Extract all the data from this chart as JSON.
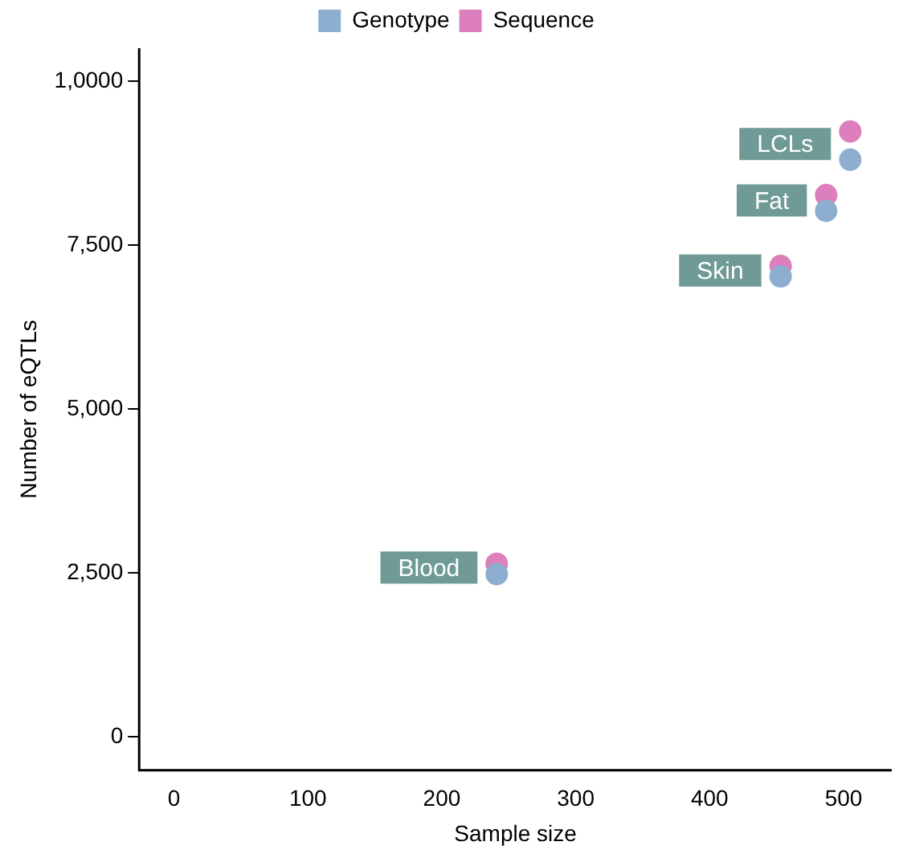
{
  "chart_data": {
    "type": "scatter",
    "xlabel": "Sample size",
    "ylabel": "Number of eQTLs",
    "xlim": [
      -26,
      536
    ],
    "ylim": [
      -510,
      10500
    ],
    "xticks": [
      0,
      100,
      200,
      300,
      400,
      500
    ],
    "yticks": [
      {
        "value": 0,
        "label": "0"
      },
      {
        "value": 2500,
        "label": "2,500"
      },
      {
        "value": 5000,
        "label": "5,000"
      },
      {
        "value": 7500,
        "label": "7,500"
      },
      {
        "value": 10000,
        "label": "1,0000"
      }
    ],
    "series": [
      {
        "name": "Genotype",
        "color": "#8eaed0",
        "x": [
          241,
          453,
          487,
          505
        ],
        "values": [
          2480,
          7020,
          8020,
          8800
        ]
      },
      {
        "name": "Sequence",
        "color": "#dc7fbc",
        "x": [
          241,
          453,
          487,
          505
        ],
        "values": [
          2640,
          7180,
          8260,
          9230
        ]
      }
    ],
    "annotations": [
      {
        "text": "Blood",
        "x": 241,
        "y": 2580
      },
      {
        "text": "Skin",
        "x": 453,
        "y": 7110
      },
      {
        "text": "Fat",
        "x": 487,
        "y": 8180
      },
      {
        "text": "LCLs",
        "x": 505,
        "y": 9040
      }
    ],
    "marker": "circle",
    "grid": false,
    "legend": "top"
  }
}
